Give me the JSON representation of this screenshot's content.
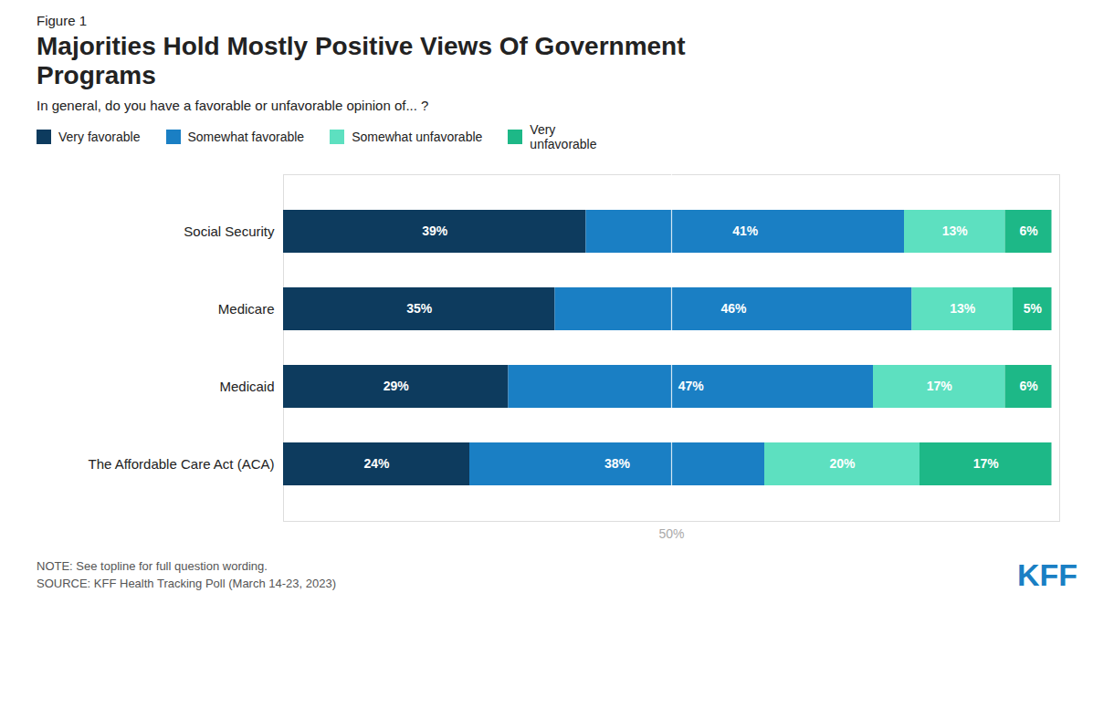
{
  "chart_data": {
    "type": "bar",
    "orientation": "horizontal",
    "stacked": true,
    "figure_label": "Figure 1",
    "title": "Majorities Hold Mostly Positive Views Of Government\nPrograms",
    "subtitle": "In general, do you have a favorable or unfavorable opinion of... ?",
    "note": "NOTE: See topline for full question wording.\nSOURCE: KFF Health Tracking Poll (March 14-23, 2023)",
    "annotations": [
      {
        "text": "50%",
        "x": 50,
        "color": "#aaaaaa"
      },
      {
        "text": "KFF",
        "color": "#1a7fc4"
      }
    ],
    "categories": [
      "Social Security",
      "Medicare",
      "Medicaid",
      "The Affordable Care Act (ACA)"
    ],
    "series": [
      {
        "name": "Very favorable",
        "color": "#0d3b5e",
        "values": [
          39,
          35,
          29,
          24
        ],
        "value_labels": [
          "39%",
          "35%",
          "29%",
          "24%"
        ]
      },
      {
        "name": "Somewhat favorable",
        "color": "#1a7fc4",
        "values": [
          41,
          46,
          47,
          38
        ],
        "value_labels": [
          "41%",
          "46%",
          "47%",
          "38%"
        ]
      },
      {
        "name": "Somewhat unfavorable",
        "color": "#5de0c0",
        "values": [
          13,
          13,
          17,
          20
        ],
        "value_labels": [
          "13%",
          "13%",
          "17%",
          "20%"
        ]
      },
      {
        "name": "Very\nunfavorable",
        "color": "#1db887",
        "values": [
          6,
          5,
          6,
          17
        ],
        "value_labels": [
          "6%",
          "5%",
          "6%",
          "17%"
        ]
      }
    ],
    "xlim": [
      0,
      100
    ],
    "xticks": [],
    "tick_labels": "y",
    "data_labels": true,
    "grid": false,
    "legend": "top left"
  }
}
